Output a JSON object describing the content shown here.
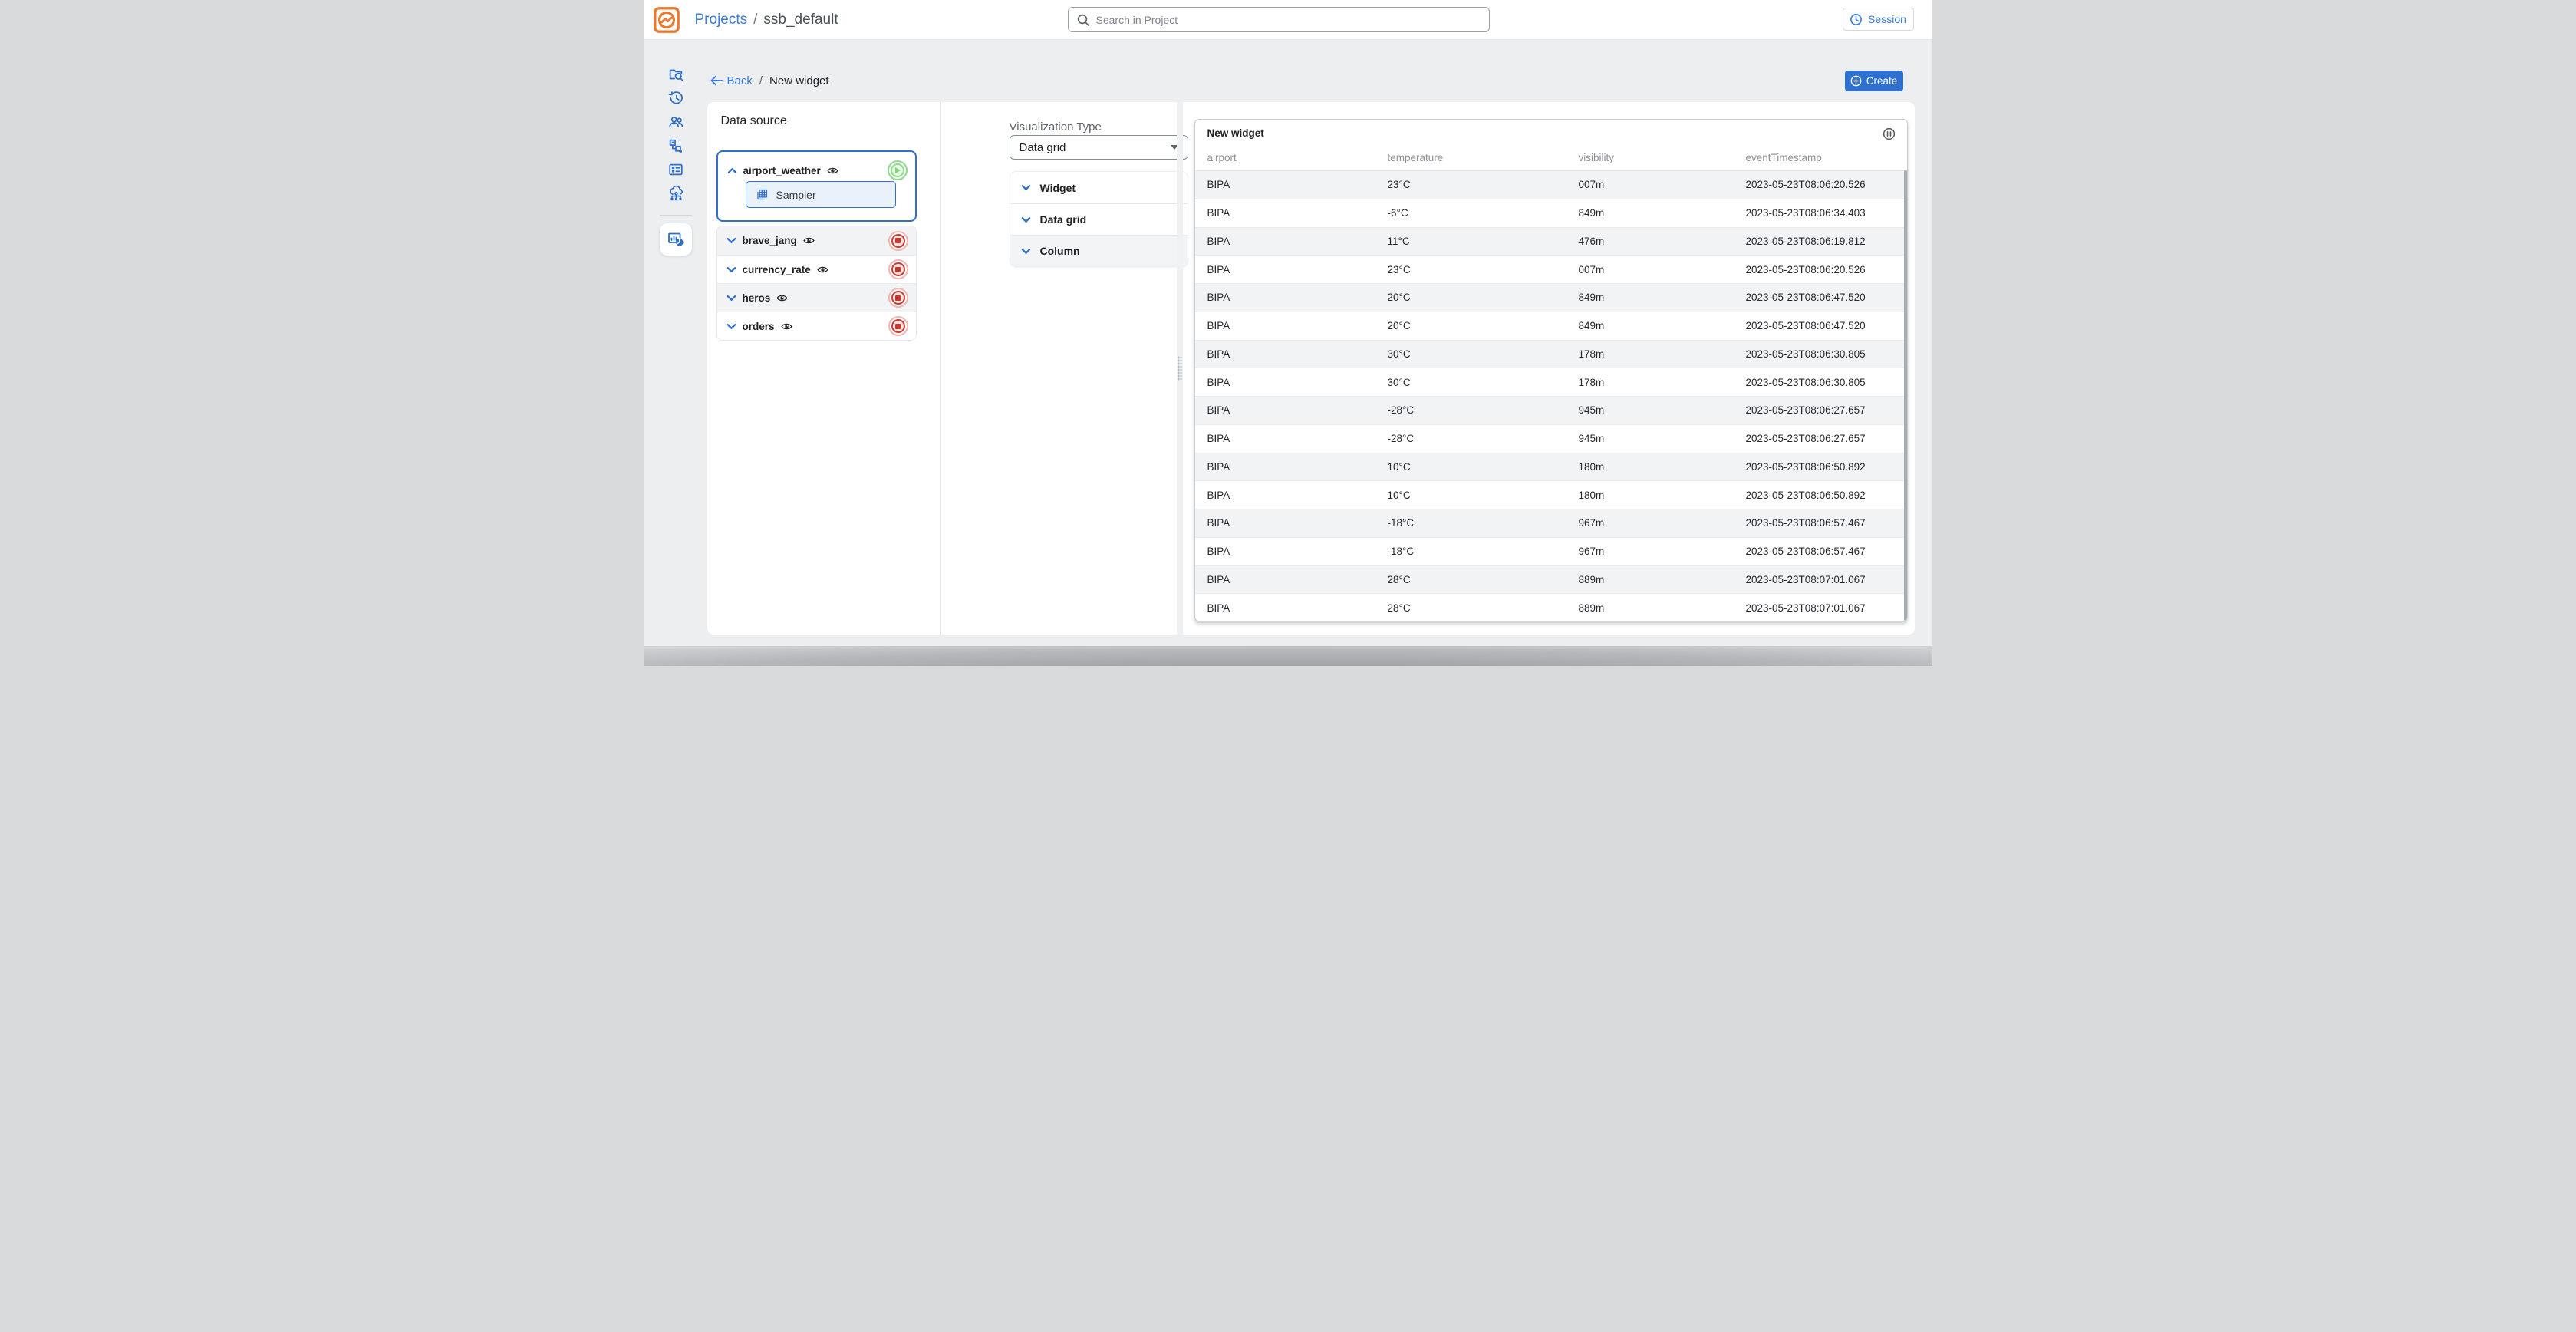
{
  "header": {
    "logo_name": "ssb-logo",
    "projects_label": "Projects",
    "separator": "/",
    "project_name": "ssb_default",
    "search_placeholder": "Search in Project",
    "session_label": "Session"
  },
  "sidebar": {
    "items": [
      {
        "icon": "folder-search-icon"
      },
      {
        "icon": "history-icon"
      },
      {
        "icon": "users-icon"
      },
      {
        "icon": "job-flow-icon"
      },
      {
        "icon": "forms-icon"
      },
      {
        "icon": "cloud-cluster-icon"
      },
      {
        "icon": "monitoring-charts-icon",
        "active": true
      }
    ]
  },
  "toolbar": {
    "back_label": "Back",
    "separator": "/",
    "page_title": "New widget",
    "create_label": "Create"
  },
  "data_source": {
    "title": "Data source",
    "items": [
      {
        "name": "airport_weather",
        "expanded": true,
        "selected": true,
        "action": "play",
        "children": [
          "Sampler"
        ]
      },
      {
        "name": "brave_jang",
        "expanded": false,
        "action": "stop"
      },
      {
        "name": "currency_rate",
        "expanded": false,
        "action": "stop"
      },
      {
        "name": "heros",
        "expanded": false,
        "action": "stop"
      },
      {
        "name": "orders",
        "expanded": false,
        "action": "stop"
      }
    ],
    "sampler_label": "Sampler"
  },
  "visualization": {
    "title": "Visualization Type",
    "selected_type": "Data grid",
    "sections": [
      "Widget",
      "Data grid",
      "Column"
    ]
  },
  "widget_preview": {
    "title": "New widget",
    "pause_icon": "pause-icon",
    "columns": [
      "airport",
      "temperature",
      "visibility",
      "eventTimestamp"
    ],
    "rows": [
      [
        "BIPA",
        "23°C",
        "007m",
        "2023-05-23T08:06:20.526"
      ],
      [
        "BIPA",
        "-6°C",
        "849m",
        "2023-05-23T08:06:34.403"
      ],
      [
        "BIPA",
        "11°C",
        "476m",
        "2023-05-23T08:06:19.812"
      ],
      [
        "BIPA",
        "23°C",
        "007m",
        "2023-05-23T08:06:20.526"
      ],
      [
        "BIPA",
        "20°C",
        "849m",
        "2023-05-23T08:06:47.520"
      ],
      [
        "BIPA",
        "20°C",
        "849m",
        "2023-05-23T08:06:47.520"
      ],
      [
        "BIPA",
        "30°C",
        "178m",
        "2023-05-23T08:06:30.805"
      ],
      [
        "BIPA",
        "30°C",
        "178m",
        "2023-05-23T08:06:30.805"
      ],
      [
        "BIPA",
        "-28°C",
        "945m",
        "2023-05-23T08:06:27.657"
      ],
      [
        "BIPA",
        "-28°C",
        "945m",
        "2023-05-23T08:06:27.657"
      ],
      [
        "BIPA",
        "10°C",
        "180m",
        "2023-05-23T08:06:50.892"
      ],
      [
        "BIPA",
        "10°C",
        "180m",
        "2023-05-23T08:06:50.892"
      ],
      [
        "BIPA",
        "-18°C",
        "967m",
        "2023-05-23T08:06:57.467"
      ],
      [
        "BIPA",
        "-18°C",
        "967m",
        "2023-05-23T08:06:57.467"
      ],
      [
        "BIPA",
        "28°C",
        "889m",
        "2023-05-23T08:07:01.067"
      ],
      [
        "BIPA",
        "28°C",
        "889m",
        "2023-05-23T08:07:01.067"
      ]
    ]
  },
  "colors": {
    "accent_blue": "#2e70cf",
    "link_blue": "#3b7cd5",
    "brand_orange": "#e87b30",
    "run_green": "#7cd779",
    "stop_red": "#c4362e",
    "stripe_gray": "#f1f3f4",
    "page_bg": "#eceef0"
  }
}
